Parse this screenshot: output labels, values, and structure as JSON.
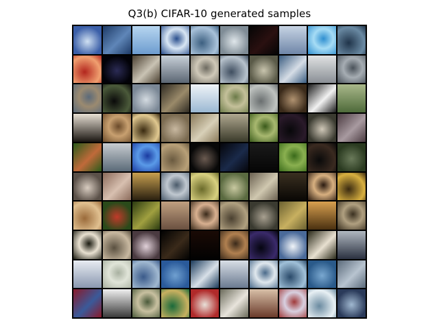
{
  "figure": {
    "title": "Q3(b) CIFAR-10 generated samples"
  },
  "grid": {
    "rows": 10,
    "cols": 10,
    "row_palettes": [
      [
        [
          "#3b5fa8",
          "#cfe0f2"
        ],
        [
          "#1d3a66",
          "#5f86b8"
        ],
        [
          "#6d9ccf",
          "#b7d6f0"
        ],
        [
          "#2a4f8d",
          "#d8e6f4"
        ],
        [
          "#3c5f80",
          "#a9c2da"
        ],
        [
          "#7f8c96",
          "#dfe6ea"
        ],
        [
          "#050505",
          "#2a1010"
        ],
        [
          "#6f86a8",
          "#c7d4e4"
        ],
        [
          "#2f8fd0",
          "#a6dcf5"
        ],
        [
          "#20344a",
          "#6a8aa3"
        ]
      ],
      [
        [
          "#b3261e",
          "#f0a070"
        ],
        [
          "#020208",
          "#2b2b55"
        ],
        [
          "#4a3f30",
          "#c9c3b4"
        ],
        [
          "#5b6673",
          "#c8d0d8"
        ],
        [
          "#6d6a60",
          "#cfc8b8"
        ],
        [
          "#3f4e60",
          "#b7c2cc"
        ],
        [
          "#5a5a48",
          "#c8c4ad"
        ],
        [
          "#3a5c80",
          "#d6dde6"
        ],
        [
          "#8a8f95",
          "#e0e2e3"
        ],
        [
          "#4a525a",
          "#a6adb3"
        ]
      ],
      [
        [
          "#5b6a7a",
          "#9b8a70"
        ],
        [
          "#0a0a0a",
          "#4b5a3a"
        ],
        [
          "#7a8795",
          "#d3dae0"
        ],
        [
          "#2e2a22",
          "#9a8a6a"
        ],
        [
          "#9bb8d2",
          "#f0f4f8"
        ],
        [
          "#6b7a48",
          "#c4c09a"
        ],
        [
          "#6a6f70",
          "#bfc3c0"
        ],
        [
          "#3a2a1a",
          "#b09270"
        ],
        [
          "#1a1a1a",
          "#f2f2f2"
        ],
        [
          "#4e6a3a",
          "#a9b88a"
        ]
      ],
      [
        [
          "#1a1612",
          "#e8e0d4"
        ],
        [
          "#6a4a2a",
          "#c8a070"
        ],
        [
          "#3a2a10",
          "#e0c890"
        ],
        [
          "#7a6a50",
          "#c8b8a0"
        ],
        [
          "#8a7a5a",
          "#d8d0b8"
        ],
        [
          "#3a3a2a",
          "#b0a890"
        ],
        [
          "#3a5a1a",
          "#a8b870"
        ],
        [
          "#08080a",
          "#2a1a2a"
        ],
        [
          "#3a3a30",
          "#d0c8b8"
        ],
        [
          "#4a3a40",
          "#a89aa0"
        ]
      ],
      [
        [
          "#2a5a1a",
          "#c06a3a"
        ],
        [
          "#5a6a78",
          "#c8ccd0"
        ],
        [
          "#1a3aa0",
          "#5a9ae8"
        ],
        [
          "#6a5a40",
          "#b8a078"
        ],
        [
          "#080808",
          "#6a5a50"
        ],
        [
          "#05050a",
          "#1a2a4a"
        ],
        [
          "#060606",
          "#1a1a1a"
        ],
        [
          "#3a6a1a",
          "#8ab050"
        ],
        [
          "#0a0a0a",
          "#3a2a20"
        ],
        [
          "#2a3a20",
          "#6a7a5a"
        ]
      ],
      [
        [
          "#5a5048",
          "#d8ccc0"
        ],
        [
          "#8a6a5a",
          "#d8c0b0"
        ],
        [
          "#2a2010",
          "#c8a050"
        ],
        [
          "#4a5a6a",
          "#c0c8d0"
        ],
        [
          "#6a6a2a",
          "#d8d080"
        ],
        [
          "#5a6a40",
          "#c8c8a0"
        ],
        [
          "#6a6050",
          "#d0c8b0"
        ],
        [
          "#0a0805",
          "#3a3020"
        ],
        [
          "#2a1a10",
          "#d8b080"
        ],
        [
          "#3a2a10",
          "#d8b040"
        ]
      ],
      [
        [
          "#9a6a3a",
          "#e0c090"
        ],
        [
          "#2a4a1a",
          "#c03a2a"
        ],
        [
          "#2a3a10",
          "#a0a040"
        ],
        [
          "#6a5040",
          "#c0a080"
        ],
        [
          "#3a2a1a",
          "#d8b090"
        ],
        [
          "#4a4030",
          "#b0a080"
        ],
        [
          "#3a3a30",
          "#a8a090"
        ],
        [
          "#6a6030",
          "#c8b060"
        ],
        [
          "#4a3010",
          "#d8a050"
        ],
        [
          "#3a3020",
          "#b0a080"
        ]
      ],
      [
        [
          "#1a1a10",
          "#e8e0d0"
        ],
        [
          "#5a5040",
          "#c8b8a0"
        ],
        [
          "#4a3a40",
          "#e0d0d8"
        ],
        [
          "#020202",
          "#3a2a1a"
        ],
        [
          "#020202",
          "#1a0a05"
        ],
        [
          "#3a2a1a",
          "#b08050"
        ],
        [
          "#050510",
          "#3a2a6a"
        ],
        [
          "#4a6a9a",
          "#f0f4f8"
        ],
        [
          "#2a2a1a",
          "#e8e0d0"
        ],
        [
          "#2a3040",
          "#b0b8c0"
        ]
      ],
      [
        [
          "#8a98b0",
          "#e8ecf2"
        ],
        [
          "#a8b0a0",
          "#e0e4d8"
        ],
        [
          "#3a5a8a",
          "#a0b8d0"
        ],
        [
          "#2a5a9a",
          "#70a0d0"
        ],
        [
          "#1a3a5a",
          "#d8e0e8"
        ],
        [
          "#6a7a90",
          "#d8dee6"
        ],
        [
          "#4a6a8a",
          "#e0e8ee"
        ],
        [
          "#2a4a6a",
          "#a0c0d8"
        ],
        [
          "#2a5a8a",
          "#7aa8d0"
        ],
        [
          "#5a6a7a",
          "#b8c4d0"
        ]
      ],
      [
        [
          "#8a1a2a",
          "#3a5a9a"
        ],
        [
          "#3a3a3a",
          "#f0f0f0"
        ],
        [
          "#4a5a3a",
          "#c8c0a0"
        ],
        [
          "#1a6a3a",
          "#c8b060"
        ],
        [
          "#b02a2a",
          "#e8e0d8"
        ],
        [
          "#6a6a5a",
          "#e8e4dc"
        ],
        [
          "#6a3a2a",
          "#d8c0a8"
        ],
        [
          "#a03a3a",
          "#d8d0e0"
        ],
        [
          "#6a8aa0",
          "#e8f0f4"
        ],
        [
          "#2a3a5a",
          "#a0b8d0"
        ]
      ]
    ]
  }
}
